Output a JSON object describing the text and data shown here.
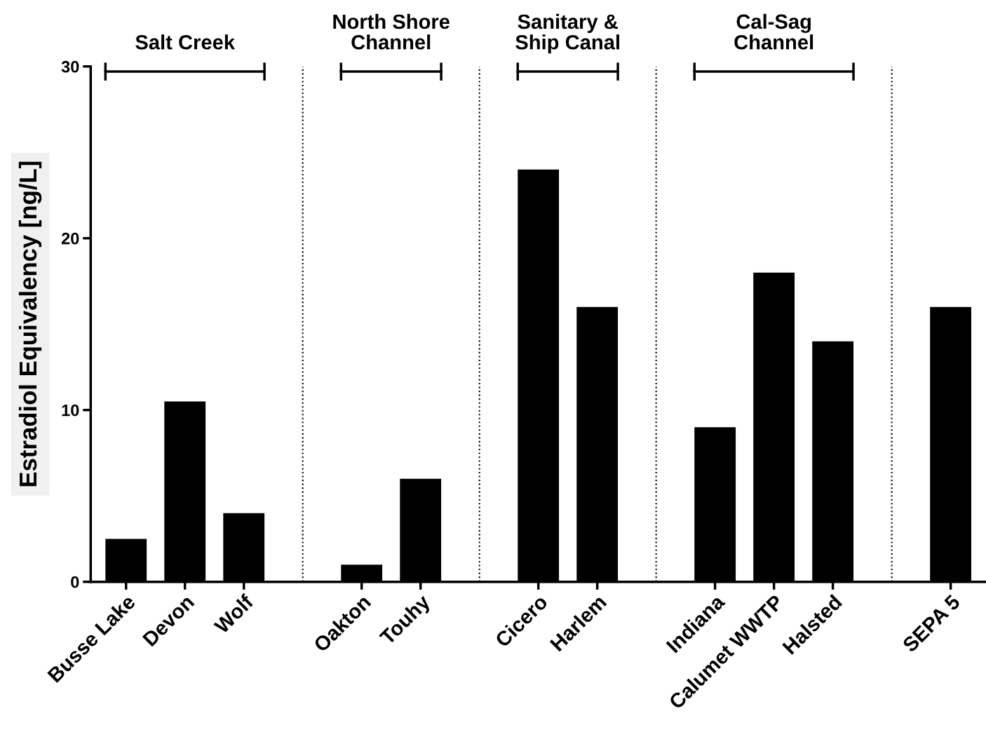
{
  "chart_data": {
    "type": "bar",
    "ylabel": "Estradiol Equivalency [ng/L]",
    "categories": [
      "Busse Lake",
      "Devon",
      "Wolf",
      null,
      "Oakton",
      "Touhy",
      null,
      "Cicero",
      "Harlem",
      null,
      "Indiana",
      "Calumet WWTP",
      "Halsted",
      null,
      "SEPA 5"
    ],
    "values": [
      2.5,
      10.5,
      4,
      null,
      1,
      6,
      null,
      24,
      16,
      null,
      9,
      18,
      14,
      null,
      16
    ],
    "color": "#000000",
    "ylim": [
      0,
      30
    ],
    "yticks": [
      0,
      10,
      20,
      30
    ],
    "grid": "x",
    "annotations": [
      "Salt Creek",
      "North Shore\nChannel",
      "Sanitary &\nShip Canal",
      "Cal-Sag\nChannel"
    ]
  }
}
